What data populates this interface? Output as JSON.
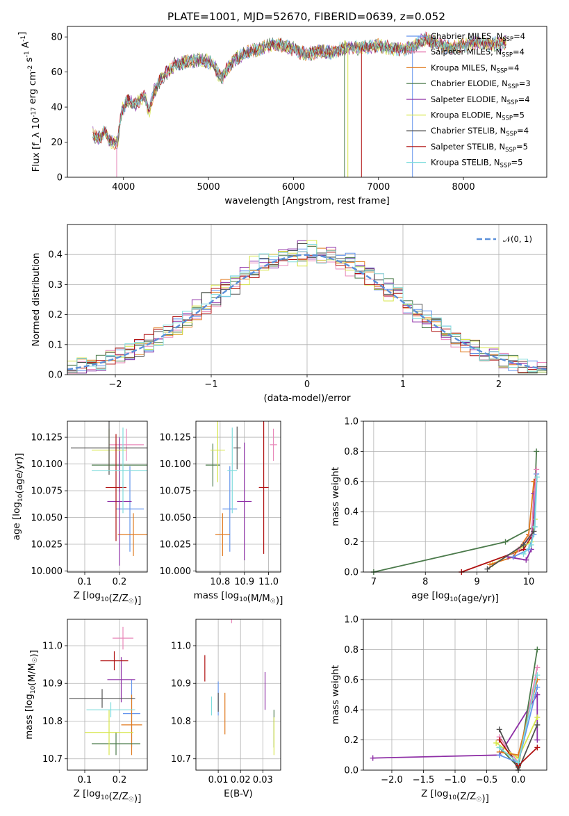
{
  "figure_title": "PLATE=1001, MJD=52670, FIBERID=0639, z=0.052",
  "chart_data": [
    {
      "id": "spectrum",
      "type": "line",
      "title": "PLATE=1001, MJD=52670, FIBERID=0639, z=0.052",
      "xlabel": "wavelength [Angstrom, rest frame]",
      "ylabel": "Flux [f_λ 10^-17 erg cm^-2 s^-1 A^-1]",
      "xlim": [
        3340,
        8980
      ],
      "ylim": [
        0,
        86
      ],
      "xticks": [
        4000,
        5000,
        6000,
        7000,
        8000
      ],
      "yticks": [
        0,
        20,
        40,
        60,
        80
      ],
      "grid": false,
      "legend_position": "top-right",
      "continuum": [
        [
          3640,
          25
        ],
        [
          3700,
          22
        ],
        [
          3780,
          26
        ],
        [
          3850,
          20
        ],
        [
          3930,
          20
        ],
        [
          3980,
          38
        ],
        [
          4050,
          44
        ],
        [
          4150,
          42
        ],
        [
          4250,
          47
        ],
        [
          4300,
          36
        ],
        [
          4350,
          48
        ],
        [
          4450,
          57
        ],
        [
          4600,
          64
        ],
        [
          4750,
          66
        ],
        [
          4900,
          67
        ],
        [
          5050,
          65
        ],
        [
          5150,
          56
        ],
        [
          5200,
          60
        ],
        [
          5300,
          67
        ],
        [
          5450,
          71
        ],
        [
          5600,
          73
        ],
        [
          5750,
          76
        ],
        [
          5900,
          75
        ],
        [
          6000,
          73
        ],
        [
          6150,
          70
        ],
        [
          6300,
          72
        ],
        [
          6450,
          71
        ],
        [
          6600,
          74
        ],
        [
          6800,
          74
        ],
        [
          7000,
          75
        ],
        [
          7200,
          73
        ],
        [
          7400,
          74
        ],
        [
          7480,
          77
        ],
        [
          7560,
          79
        ],
        [
          7700,
          76
        ],
        [
          7850,
          74
        ],
        [
          8000,
          75
        ],
        [
          8150,
          77
        ],
        [
          8300,
          76
        ],
        [
          8450,
          76
        ],
        [
          8500,
          77
        ]
      ],
      "dips": [
        [
          3920,
          0
        ],
        [
          6600,
          0
        ],
        [
          6640,
          0
        ],
        [
          6800,
          0
        ],
        [
          7400,
          0
        ]
      ],
      "series": [
        {
          "name": "Chabrier MILES, N_SSP=4",
          "label_main": "Chabrier MILES, N",
          "label_sub": "SSP",
          "label_end": "=4",
          "color": "#6495ed"
        },
        {
          "name": "Salpeter MILES, N_SSP=4",
          "label_main": "Salpeter MILES, N",
          "label_sub": "SSP",
          "label_end": "=4",
          "color": "#e887b9"
        },
        {
          "name": "Kroupa MILES, N_SSP=4",
          "label_main": "Kroupa MILES, N",
          "label_sub": "SSP",
          "label_end": "=4",
          "color": "#e07a1f"
        },
        {
          "name": "Chabrier ELODIE, N_SSP=3",
          "label_main": "Chabrier ELODIE, N",
          "label_sub": "SSP",
          "label_end": "=3",
          "color": "#4b7a4b"
        },
        {
          "name": "Salpeter ELODIE, N_SSP=4",
          "label_main": "Salpeter ELODIE, N",
          "label_sub": "SSP",
          "label_end": "=4",
          "color": "#8e2fa6"
        },
        {
          "name": "Kroupa ELODIE, N_SSP=5",
          "label_main": "Kroupa ELODIE, N",
          "label_sub": "SSP",
          "label_end": "=5",
          "color": "#d7e64a"
        },
        {
          "name": "Chabrier STELIB, N_SSP=4",
          "label_main": "Chabrier STELIB, N",
          "label_sub": "SSP",
          "label_end": "=4",
          "color": "#505050"
        },
        {
          "name": "Salpeter STELIB, N_SSP=5",
          "label_main": "Salpeter STELIB, N",
          "label_sub": "SSP",
          "label_end": "=5",
          "color": "#b01010"
        },
        {
          "name": "Kroupa STELIB, N_SSP=5",
          "label_main": "Kroupa STELIB, N",
          "label_sub": "SSP",
          "label_end": "=5",
          "color": "#7fdcdc"
        }
      ]
    },
    {
      "id": "residuals",
      "type": "line",
      "xlabel": "(data-model)/error",
      "ylabel": "Normed distribution",
      "xlim": [
        -2.5,
        2.5
      ],
      "ylim": [
        0,
        0.5
      ],
      "xticks": [
        -2,
        -1,
        0,
        1,
        2
      ],
      "yticks": [
        0.0,
        0.1,
        0.2,
        0.3,
        0.4
      ],
      "grid": true,
      "legend": "𝒩(0, 1)",
      "legend_position": "top-right",
      "gaussian": {
        "mu": 0,
        "sigma": 1,
        "color": "#5b8fd9"
      },
      "bin_width": 0.1
    },
    {
      "id": "age_vs_Z",
      "type": "scatter",
      "xlabel": "Z [log10(Z/Z☉)]",
      "ylabel": "age [log10(age/yr)]",
      "xlim": [
        0.05,
        0.28
      ],
      "ylim": [
        9.999,
        10.14
      ],
      "xticks": [
        0.1,
        0.2
      ],
      "yticks": [
        10.0,
        10.025,
        10.05,
        10.075,
        10.1,
        10.125
      ],
      "grid": true,
      "points": [
        {
          "x": 0.23,
          "y": 10.058,
          "xe": 0.04,
          "ye": 0.04,
          "color": "#6495ed"
        },
        {
          "x": 0.22,
          "y": 10.118,
          "xe": 0.05,
          "ye": 0.015,
          "color": "#e887b9"
        },
        {
          "x": 0.24,
          "y": 10.034,
          "xe": 0.045,
          "ye": 0.02,
          "color": "#e07a1f"
        },
        {
          "x": 0.2,
          "y": 10.099,
          "xe": 0.08,
          "ye": 0.025,
          "color": "#4b7a4b"
        },
        {
          "x": 0.2,
          "y": 10.065,
          "xe": 0.035,
          "ye": 0.06,
          "color": "#8e2fa6"
        },
        {
          "x": 0.17,
          "y": 10.113,
          "xe": 0.05,
          "ye": 0.02,
          "color": "#d7e64a"
        },
        {
          "x": 0.17,
          "y": 10.115,
          "xe": 0.11,
          "ye": 0.025,
          "color": "#505050"
        },
        {
          "x": 0.19,
          "y": 10.078,
          "xe": 0.03,
          "ye": 0.05,
          "color": "#b01010"
        },
        {
          "x": 0.21,
          "y": 10.094,
          "xe": 0.09,
          "ye": 0.04,
          "color": "#7fdcdc"
        }
      ]
    },
    {
      "id": "age_vs_mass",
      "type": "scatter",
      "xlabel": "mass [log10(M/M☉)]",
      "ylabel": "",
      "xlim": [
        10.7,
        11.05
      ],
      "ylim": [
        9.999,
        10.14
      ],
      "xticks": [
        10.8,
        10.9,
        11.0
      ],
      "yticks": [
        10.0,
        10.025,
        10.05,
        10.075,
        10.1,
        10.125
      ],
      "grid": true,
      "points": [
        {
          "x": 10.84,
          "y": 10.058,
          "xe": 0.03,
          "ye": 0.04,
          "color": "#6495ed"
        },
        {
          "x": 11.02,
          "y": 10.118,
          "xe": 0.015,
          "ye": 0.015,
          "color": "#e887b9"
        },
        {
          "x": 10.81,
          "y": 10.034,
          "xe": 0.03,
          "ye": 0.02,
          "color": "#e07a1f"
        },
        {
          "x": 10.77,
          "y": 10.099,
          "xe": 0.03,
          "ye": 0.02,
          "color": "#4b7a4b"
        },
        {
          "x": 10.9,
          "y": 10.065,
          "xe": 0.03,
          "ye": 0.055,
          "color": "#8e2fa6"
        },
        {
          "x": 10.79,
          "y": 10.113,
          "xe": 0.03,
          "ye": 0.03,
          "color": "#d7e64a"
        },
        {
          "x": 10.87,
          "y": 10.115,
          "xe": 0.015,
          "ye": 0.02,
          "color": "#505050"
        },
        {
          "x": 10.98,
          "y": 10.078,
          "xe": 0.02,
          "ye": 0.062,
          "color": "#b01010"
        },
        {
          "x": 10.85,
          "y": 10.094,
          "xe": 0.02,
          "ye": 0.04,
          "color": "#7fdcdc"
        }
      ]
    },
    {
      "id": "mass_weight_vs_age",
      "type": "line",
      "xlabel": "age [log10(age/yr)]",
      "ylabel": "mass weight",
      "xlim": [
        6.8,
        10.35
      ],
      "ylim": [
        0,
        1.0
      ],
      "xticks": [
        7,
        8,
        9,
        10
      ],
      "yticks": [
        0.0,
        0.2,
        0.4,
        0.6,
        0.8,
        1.0
      ],
      "grid": true,
      "series": [
        {
          "color": "#4b7a4b",
          "x": [
            7.0,
            9.55,
            10.1,
            10.15
          ],
          "y": [
            0.0,
            0.2,
            0.3,
            0.8
          ]
        },
        {
          "color": "#b01010",
          "x": [
            8.7,
            9.9,
            10.08,
            10.12
          ],
          "y": [
            0.0,
            0.15,
            0.25,
            0.6
          ]
        },
        {
          "color": "#d7e64a",
          "x": [
            9.3,
            9.8,
            10.05,
            10.12
          ],
          "y": [
            0.05,
            0.15,
            0.2,
            0.35
          ]
        },
        {
          "color": "#e07a1f",
          "x": [
            9.25,
            9.7,
            10.0,
            10.1
          ],
          "y": [
            0.05,
            0.1,
            0.25,
            0.6
          ]
        },
        {
          "color": "#8e2fa6",
          "x": [
            9.6,
            9.95,
            10.05,
            10.1
          ],
          "y": [
            0.1,
            0.08,
            0.15,
            0.52
          ]
        },
        {
          "color": "#6495ed",
          "x": [
            9.7,
            10.0,
            10.1,
            10.15
          ],
          "y": [
            0.1,
            0.15,
            0.25,
            0.65
          ]
        },
        {
          "color": "#e887b9",
          "x": [
            9.8,
            10.05,
            10.15
          ],
          "y": [
            0.15,
            0.25,
            0.68
          ]
        },
        {
          "color": "#7fdcdc",
          "x": [
            9.9,
            10.05,
            10.12,
            10.16
          ],
          "y": [
            0.12,
            0.18,
            0.3,
            0.63
          ]
        },
        {
          "color": "#505050",
          "x": [
            9.2,
            9.9,
            10.1
          ],
          "y": [
            0.02,
            0.18,
            0.27
          ]
        }
      ]
    },
    {
      "id": "mass_vs_Z",
      "type": "scatter",
      "xlabel": "Z [log10(Z/Z☉)]",
      "ylabel": "mass [log10(M/M☉)]",
      "xlim": [
        0.05,
        0.28
      ],
      "ylim": [
        10.67,
        11.07
      ],
      "xticks": [
        0.1,
        0.2
      ],
      "yticks": [
        10.7,
        10.8,
        10.9,
        11.0
      ],
      "grid": true,
      "points": [
        {
          "x": 0.235,
          "y": 10.82,
          "xe": 0.025,
          "ye": 0.09,
          "color": "#6495ed"
        },
        {
          "x": 0.21,
          "y": 11.02,
          "xe": 0.03,
          "ye": 0.03,
          "color": "#e887b9"
        },
        {
          "x": 0.235,
          "y": 10.79,
          "xe": 0.03,
          "ye": 0.08,
          "color": "#e07a1f"
        },
        {
          "x": 0.19,
          "y": 10.74,
          "xe": 0.07,
          "ye": 0.03,
          "color": "#4b7a4b"
        },
        {
          "x": 0.205,
          "y": 10.91,
          "xe": 0.04,
          "ye": 0.06,
          "color": "#8e2fa6"
        },
        {
          "x": 0.17,
          "y": 10.77,
          "xe": 0.07,
          "ye": 0.06,
          "color": "#d7e64a"
        },
        {
          "x": 0.15,
          "y": 10.86,
          "xe": 0.095,
          "ye": 0.025,
          "color": "#505050"
        },
        {
          "x": 0.185,
          "y": 10.96,
          "xe": 0.04,
          "ye": 0.025,
          "color": "#b01010"
        },
        {
          "x": 0.175,
          "y": 10.83,
          "xe": 0.07,
          "ye": 0.02,
          "color": "#7fdcdc"
        }
      ]
    },
    {
      "id": "mass_vs_EBV",
      "type": "scatter",
      "xlabel": "E(B-V)",
      "ylabel": "",
      "xlim": [
        0.0,
        0.038
      ],
      "ylim": [
        10.67,
        11.07
      ],
      "xticks": [
        0.01,
        0.02,
        0.03
      ],
      "xtick_labels": [
        "0.01",
        "0.02",
        "0.03"
      ],
      "yticks": [
        10.7,
        10.8,
        10.9,
        11.0
      ],
      "grid": true,
      "points": [
        {
          "x": 0.01,
          "y": 10.86,
          "ye": 0.045,
          "color": "#6495ed"
        },
        {
          "x": 0.016,
          "y": 11.1,
          "ye": 0.04,
          "color": "#e887b9"
        },
        {
          "x": 0.013,
          "y": 10.82,
          "ye": 0.055,
          "color": "#e07a1f"
        },
        {
          "x": 0.035,
          "y": 10.78,
          "ye": 0.05,
          "color": "#4b7a4b"
        },
        {
          "x": 0.031,
          "y": 10.88,
          "ye": 0.05,
          "color": "#8e2fa6"
        },
        {
          "x": 0.035,
          "y": 10.76,
          "ye": 0.05,
          "color": "#d7e64a"
        },
        {
          "x": 0.01,
          "y": 10.85,
          "ye": 0.025,
          "color": "#505050"
        },
        {
          "x": 0.004,
          "y": 10.94,
          "ye": 0.035,
          "color": "#b01010"
        },
        {
          "x": 0.007,
          "y": 10.84,
          "ye": 0.025,
          "color": "#7fdcdc"
        }
      ]
    },
    {
      "id": "mass_weight_vs_Z",
      "type": "line",
      "xlabel": "Z [log10(Z/Z☉)]",
      "ylabel": "mass weight",
      "xlim": [
        -2.45,
        0.45
      ],
      "ylim": [
        0,
        1.0
      ],
      "xticks": [
        -2.0,
        -1.5,
        -1.0,
        -0.5,
        0.0
      ],
      "xtick_labels": [
        "−2.0",
        "−1.5",
        "−1.0",
        "−0.5",
        "0.0"
      ],
      "yticks": [
        0.0,
        0.2,
        0.4,
        0.6,
        0.8,
        1.0
      ],
      "grid": true,
      "series": [
        {
          "color": "#8e2fa6",
          "x": [
            -2.3,
            -0.3,
            0.3,
            0.3
          ],
          "y": [
            0.08,
            0.1,
            0.5,
            0.2
          ]
        },
        {
          "color": "#e887b9",
          "x": [
            -0.3,
            0.0,
            0.3
          ],
          "y": [
            0.22,
            0.05,
            0.68
          ]
        },
        {
          "color": "#4b7a4b",
          "x": [
            -0.3,
            0.0,
            0.3
          ],
          "y": [
            0.15,
            0.02,
            0.8
          ]
        },
        {
          "color": "#505050",
          "x": [
            -0.3,
            0.0,
            0.3
          ],
          "y": [
            0.27,
            0.0,
            0.3
          ]
        },
        {
          "color": "#d7e64a",
          "x": [
            -0.35,
            0.0,
            0.3
          ],
          "y": [
            0.18,
            0.08,
            0.35
          ]
        },
        {
          "color": "#b01010",
          "x": [
            -0.3,
            0.0,
            0.3
          ],
          "y": [
            0.2,
            0.03,
            0.15
          ]
        },
        {
          "color": "#e07a1f",
          "x": [
            -0.3,
            0.0,
            0.3
          ],
          "y": [
            0.12,
            0.1,
            0.6
          ]
        },
        {
          "color": "#6495ed",
          "x": [
            -0.3,
            0.0,
            0.3
          ],
          "y": [
            0.1,
            0.05,
            0.55
          ]
        },
        {
          "color": "#7fdcdc",
          "x": [
            -0.3,
            0.0,
            0.3
          ],
          "y": [
            0.15,
            0.05,
            0.63
          ]
        }
      ]
    }
  ]
}
